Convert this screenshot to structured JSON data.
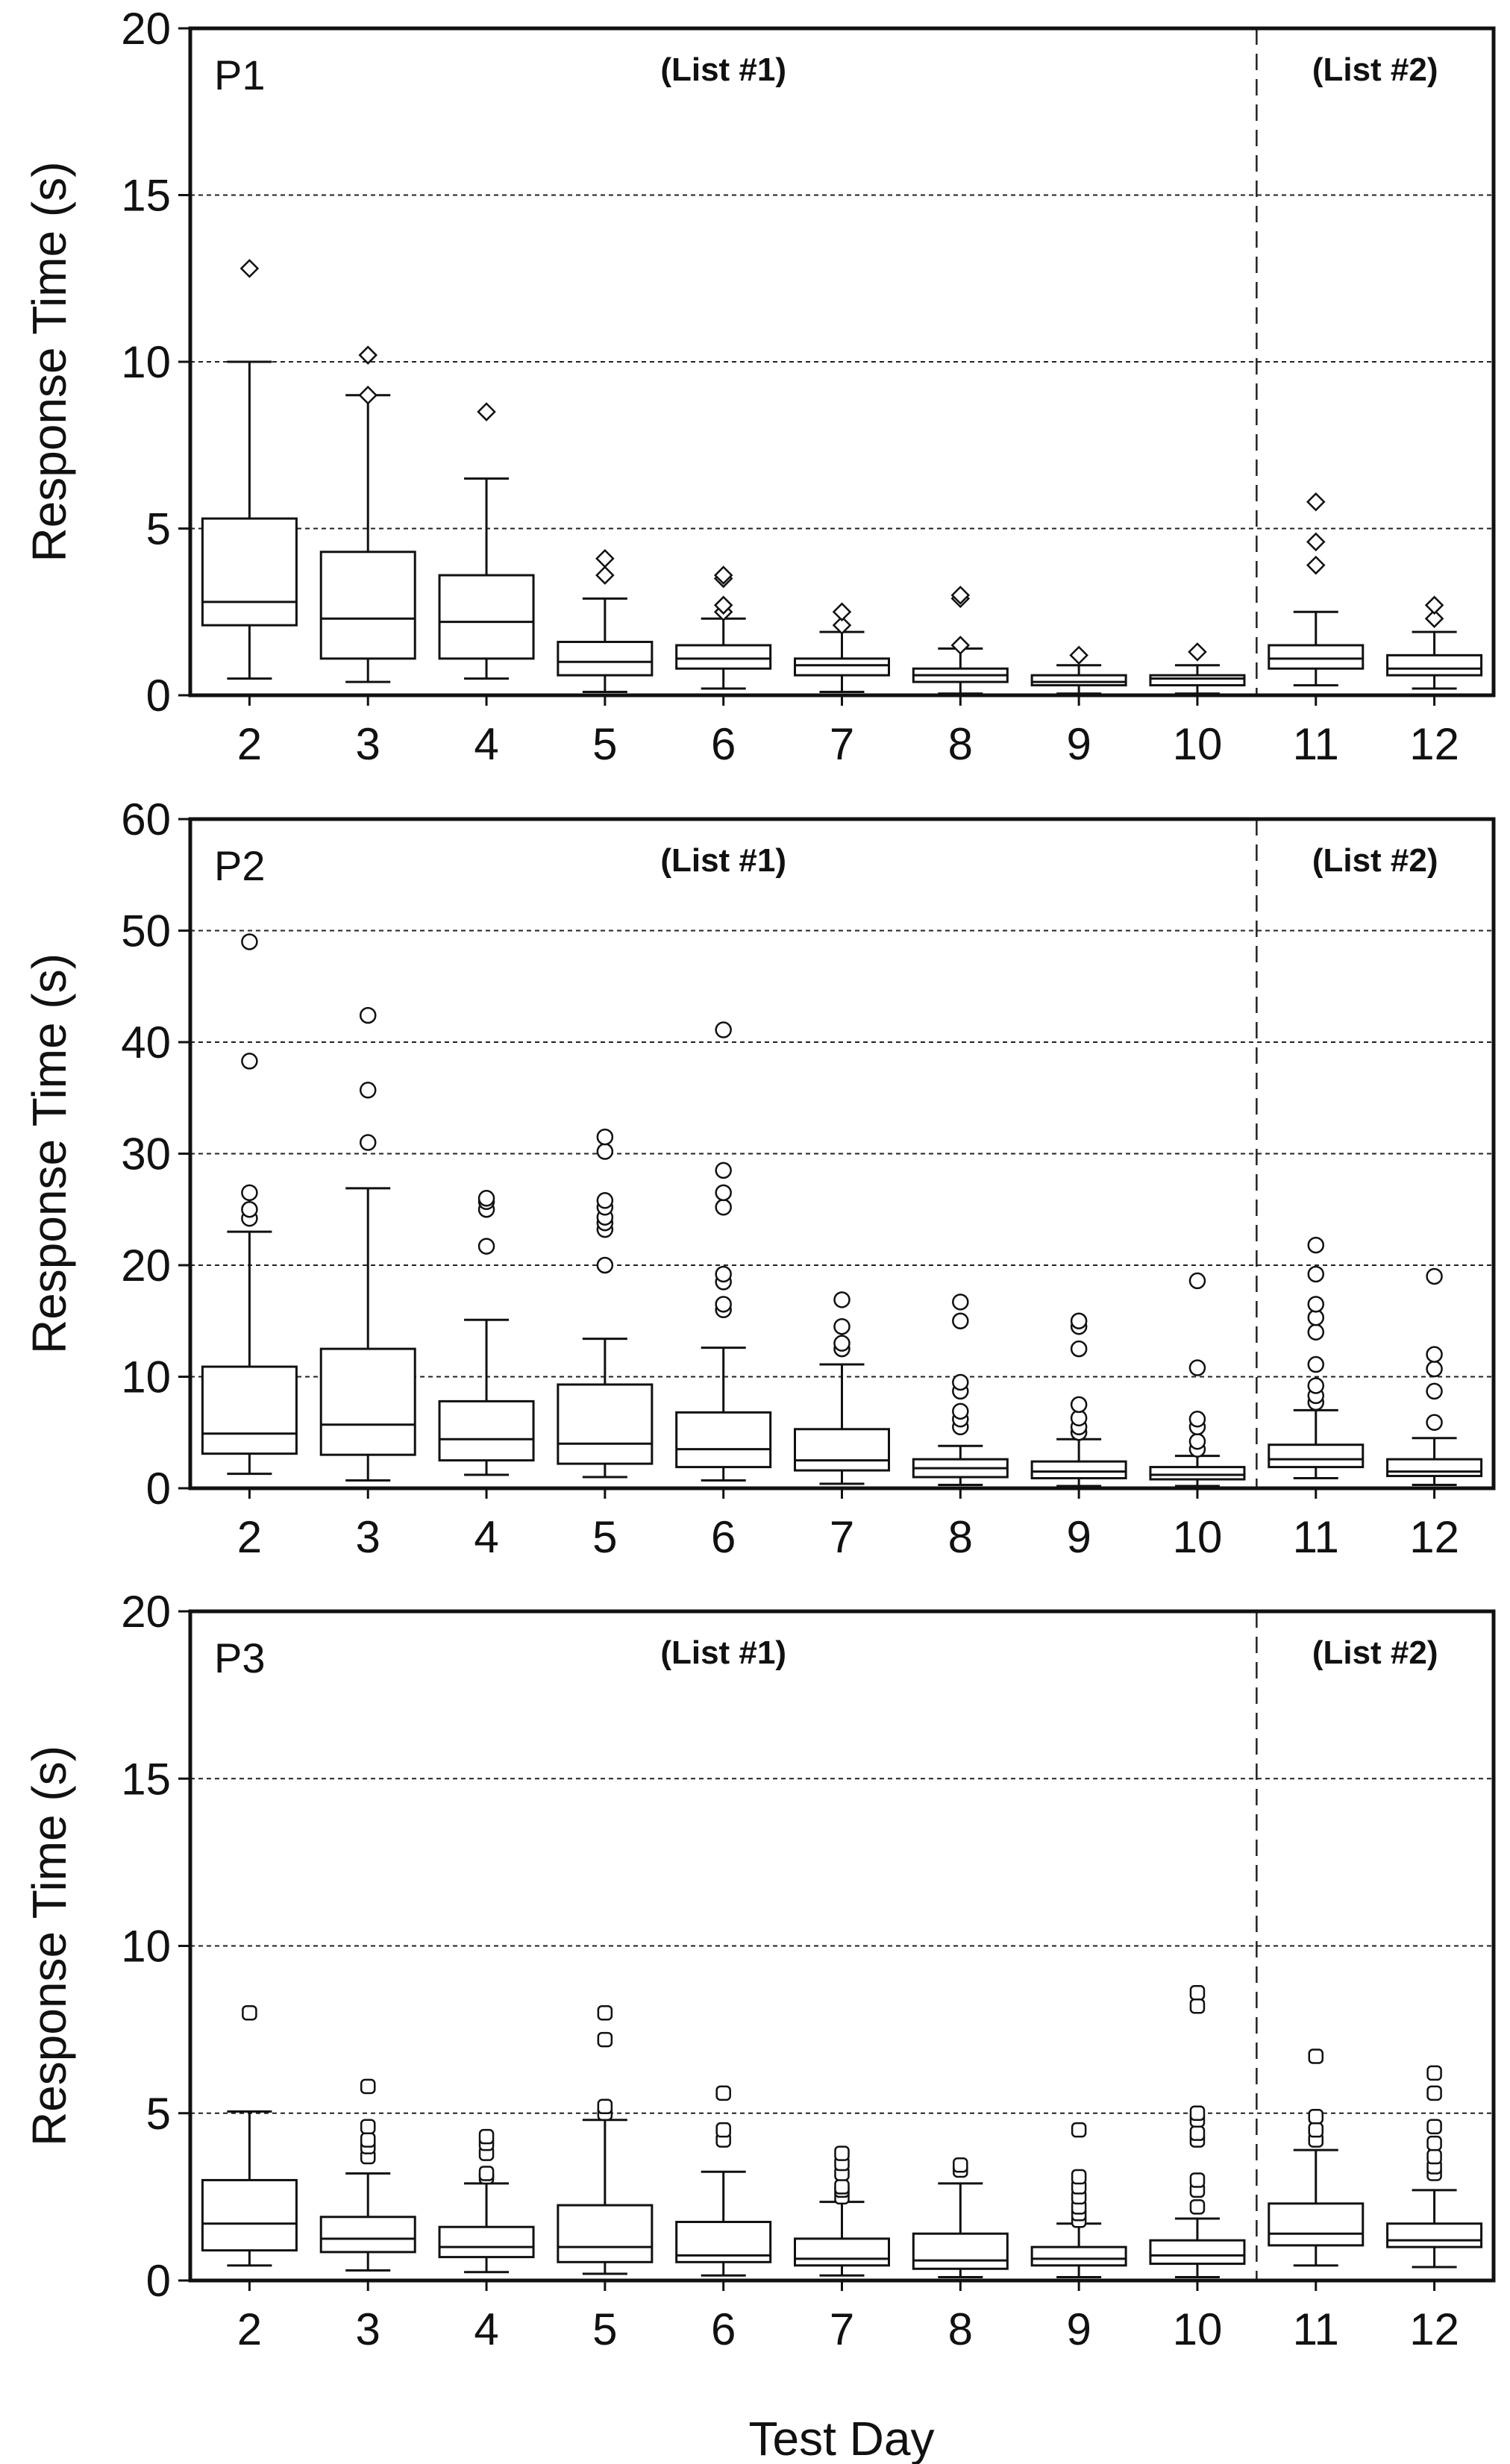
{
  "xlabel": "Test Day",
  "chart_data": [
    {
      "type": "box",
      "panel_label": "P1",
      "ylabel": "Response Time (s)",
      "ylim": [
        0,
        20
      ],
      "yticks": [
        0,
        5,
        10,
        15,
        20
      ],
      "categories": [
        "2",
        "3",
        "4",
        "5",
        "6",
        "7",
        "8",
        "9",
        "10",
        "11",
        "12"
      ],
      "group_labels": [
        {
          "text": "(List #1)",
          "spans": [
            "2",
            "10"
          ]
        },
        {
          "text": "(List #2)",
          "spans": [
            "11",
            "12"
          ]
        }
      ],
      "divider_between": [
        "10",
        "11"
      ],
      "outlier_marker": "diamond",
      "grid": "horizontal dotted at 5, 10, 15",
      "boxes": [
        {
          "day": "2",
          "whisker_low": 0.5,
          "q1": 2.1,
          "median": 2.8,
          "q3": 5.3,
          "whisker_high": 10.0,
          "outliers": [
            12.8
          ]
        },
        {
          "day": "3",
          "whisker_low": 0.4,
          "q1": 1.1,
          "median": 2.3,
          "q3": 4.3,
          "whisker_high": 9.0,
          "outliers": [
            9.0,
            10.2
          ]
        },
        {
          "day": "4",
          "whisker_low": 0.5,
          "q1": 1.1,
          "median": 2.2,
          "q3": 3.6,
          "whisker_high": 6.5,
          "outliers": [
            8.5
          ]
        },
        {
          "day": "5",
          "whisker_low": 0.1,
          "q1": 0.6,
          "median": 1.0,
          "q3": 1.6,
          "whisker_high": 2.9,
          "outliers": [
            3.6,
            4.1
          ]
        },
        {
          "day": "6",
          "whisker_low": 0.2,
          "q1": 0.8,
          "median": 1.1,
          "q3": 1.5,
          "whisker_high": 2.3,
          "outliers": [
            2.5,
            2.7,
            3.5,
            3.6
          ]
        },
        {
          "day": "7",
          "whisker_low": 0.1,
          "q1": 0.6,
          "median": 0.9,
          "q3": 1.1,
          "whisker_high": 1.9,
          "outliers": [
            2.1,
            2.5
          ]
        },
        {
          "day": "8",
          "whisker_low": 0.05,
          "q1": 0.4,
          "median": 0.6,
          "q3": 0.8,
          "whisker_high": 1.4,
          "outliers": [
            1.5,
            2.9,
            3.0
          ]
        },
        {
          "day": "9",
          "whisker_low": 0.05,
          "q1": 0.3,
          "median": 0.4,
          "q3": 0.6,
          "whisker_high": 0.9,
          "outliers": [
            1.2
          ]
        },
        {
          "day": "10",
          "whisker_low": 0.05,
          "q1": 0.3,
          "median": 0.5,
          "q3": 0.6,
          "whisker_high": 0.9,
          "outliers": [
            1.3
          ]
        },
        {
          "day": "11",
          "whisker_low": 0.3,
          "q1": 0.8,
          "median": 1.1,
          "q3": 1.5,
          "whisker_high": 2.5,
          "outliers": [
            3.9,
            4.6,
            5.8
          ]
        },
        {
          "day": "12",
          "whisker_low": 0.2,
          "q1": 0.6,
          "median": 0.8,
          "q3": 1.2,
          "whisker_high": 1.9,
          "outliers": [
            2.3,
            2.7
          ]
        }
      ]
    },
    {
      "type": "box",
      "panel_label": "P2",
      "ylabel": "Response Time (s)",
      "ylim": [
        0,
        60
      ],
      "yticks": [
        0,
        10,
        20,
        30,
        40,
        50,
        60
      ],
      "categories": [
        "2",
        "3",
        "4",
        "5",
        "6",
        "7",
        "8",
        "9",
        "10",
        "11",
        "12"
      ],
      "group_labels": [
        {
          "text": "(List #1)",
          "spans": [
            "2",
            "10"
          ]
        },
        {
          "text": "(List #2)",
          "spans": [
            "11",
            "12"
          ]
        }
      ],
      "divider_between": [
        "10",
        "11"
      ],
      "outlier_marker": "circle",
      "grid": "horizontal dotted at 10, 20, 30, 40, 50",
      "boxes": [
        {
          "day": "2",
          "whisker_low": 1.3,
          "q1": 3.1,
          "median": 4.9,
          "q3": 10.9,
          "whisker_high": 23.0,
          "outliers": [
            24.2,
            25.0,
            26.5,
            38.3,
            49.0
          ]
        },
        {
          "day": "3",
          "whisker_low": 0.7,
          "q1": 3.0,
          "median": 5.7,
          "q3": 12.5,
          "whisker_high": 26.9,
          "outliers": [
            31.0,
            35.7,
            42.4
          ]
        },
        {
          "day": "4",
          "whisker_low": 1.2,
          "q1": 2.5,
          "median": 4.4,
          "q3": 7.8,
          "whisker_high": 15.1,
          "outliers": [
            21.7,
            25.0,
            25.7,
            26.0
          ]
        },
        {
          "day": "5",
          "whisker_low": 1.0,
          "q1": 2.2,
          "median": 4.0,
          "q3": 9.3,
          "whisker_high": 13.4,
          "outliers": [
            20.0,
            23.2,
            23.8,
            24.3,
            25.2,
            25.8,
            30.2,
            31.5
          ]
        },
        {
          "day": "6",
          "whisker_low": 0.7,
          "q1": 1.9,
          "median": 3.5,
          "q3": 6.8,
          "whisker_high": 12.6,
          "outliers": [
            16.0,
            16.5,
            18.5,
            19.2,
            25.2,
            26.5,
            28.5,
            41.1
          ]
        },
        {
          "day": "7",
          "whisker_low": 0.4,
          "q1": 1.6,
          "median": 2.5,
          "q3": 5.3,
          "whisker_high": 11.1,
          "outliers": [
            12.5,
            13.0,
            14.5,
            16.9
          ]
        },
        {
          "day": "8",
          "whisker_low": 0.3,
          "q1": 1.0,
          "median": 1.8,
          "q3": 2.6,
          "whisker_high": 3.8,
          "outliers": [
            5.5,
            6.2,
            6.9,
            8.7,
            9.5,
            15.0,
            16.7
          ]
        },
        {
          "day": "9",
          "whisker_low": 0.2,
          "q1": 0.9,
          "median": 1.5,
          "q3": 2.4,
          "whisker_high": 4.4,
          "outliers": [
            5.0,
            5.5,
            6.3,
            7.5,
            12.5,
            14.5,
            15.0
          ]
        },
        {
          "day": "10",
          "whisker_low": 0.2,
          "q1": 0.8,
          "median": 1.2,
          "q3": 1.9,
          "whisker_high": 2.9,
          "outliers": [
            3.5,
            4.2,
            5.5,
            6.2,
            10.8,
            18.6
          ]
        },
        {
          "day": "11",
          "whisker_low": 0.9,
          "q1": 1.9,
          "median": 2.6,
          "q3": 3.9,
          "whisker_high": 7.0,
          "outliers": [
            7.7,
            8.3,
            9.2,
            11.1,
            14.0,
            15.3,
            16.5,
            19.2,
            21.8
          ]
        },
        {
          "day": "12",
          "whisker_low": 0.3,
          "q1": 1.1,
          "median": 1.5,
          "q3": 2.6,
          "whisker_high": 4.5,
          "outliers": [
            5.9,
            8.7,
            10.7,
            12.0,
            19.0
          ]
        }
      ]
    },
    {
      "type": "box",
      "panel_label": "P3",
      "ylabel": "Response Time (s)",
      "ylim": [
        0,
        20
      ],
      "yticks": [
        0,
        5,
        10,
        15,
        20
      ],
      "categories": [
        "2",
        "3",
        "4",
        "5",
        "6",
        "7",
        "8",
        "9",
        "10",
        "11",
        "12"
      ],
      "group_labels": [
        {
          "text": "(List #1)",
          "spans": [
            "2",
            "10"
          ]
        },
        {
          "text": "(List #2)",
          "spans": [
            "11",
            "12"
          ]
        }
      ],
      "divider_between": [
        "10",
        "11"
      ],
      "outlier_marker": "rounded-square",
      "grid": "horizontal dotted at 5, 10, 15",
      "boxes": [
        {
          "day": "2",
          "whisker_low": 0.45,
          "q1": 0.9,
          "median": 1.7,
          "q3": 3.0,
          "whisker_high": 5.05,
          "outliers": [
            8.0
          ]
        },
        {
          "day": "3",
          "whisker_low": 0.3,
          "q1": 0.85,
          "median": 1.25,
          "q3": 1.9,
          "whisker_high": 3.2,
          "outliers": [
            3.7,
            4.0,
            4.2,
            4.6,
            5.8
          ]
        },
        {
          "day": "4",
          "whisker_low": 0.25,
          "q1": 0.7,
          "median": 1.0,
          "q3": 1.6,
          "whisker_high": 2.9,
          "outliers": [
            3.1,
            3.2,
            3.8,
            4.1,
            4.3
          ]
        },
        {
          "day": "5",
          "whisker_low": 0.2,
          "q1": 0.55,
          "median": 1.0,
          "q3": 2.25,
          "whisker_high": 4.8,
          "outliers": [
            5.0,
            5.2,
            7.2,
            8.0
          ]
        },
        {
          "day": "6",
          "whisker_low": 0.15,
          "q1": 0.55,
          "median": 0.75,
          "q3": 1.75,
          "whisker_high": 3.25,
          "outliers": [
            4.2,
            4.5,
            5.6
          ]
        },
        {
          "day": "7",
          "whisker_low": 0.15,
          "q1": 0.45,
          "median": 0.65,
          "q3": 1.25,
          "whisker_high": 2.35,
          "outliers": [
            2.5,
            2.7,
            2.8,
            3.2,
            3.5,
            3.8
          ]
        },
        {
          "day": "8",
          "whisker_low": 0.1,
          "q1": 0.35,
          "median": 0.6,
          "q3": 1.4,
          "whisker_high": 2.9,
          "outliers": [
            3.3,
            3.45
          ]
        },
        {
          "day": "9",
          "whisker_low": 0.1,
          "q1": 0.45,
          "median": 0.65,
          "q3": 1.0,
          "whisker_high": 1.7,
          "outliers": [
            1.8,
            2.0,
            2.2,
            2.5,
            2.8,
            3.1,
            4.5
          ]
        },
        {
          "day": "10",
          "whisker_low": 0.1,
          "q1": 0.5,
          "median": 0.75,
          "q3": 1.2,
          "whisker_high": 1.85,
          "outliers": [
            2.2,
            2.7,
            3.0,
            4.2,
            4.4,
            4.8,
            5.0,
            8.2,
            8.6
          ]
        },
        {
          "day": "11",
          "whisker_low": 0.45,
          "q1": 1.05,
          "median": 1.4,
          "q3": 2.3,
          "whisker_high": 3.9,
          "outliers": [
            4.2,
            4.5,
            4.9,
            6.7
          ]
        },
        {
          "day": "12",
          "whisker_low": 0.4,
          "q1": 1.0,
          "median": 1.2,
          "q3": 1.7,
          "whisker_high": 2.7,
          "outliers": [
            3.2,
            3.4,
            3.7,
            4.1,
            4.6,
            5.6,
            6.2
          ]
        }
      ]
    }
  ]
}
